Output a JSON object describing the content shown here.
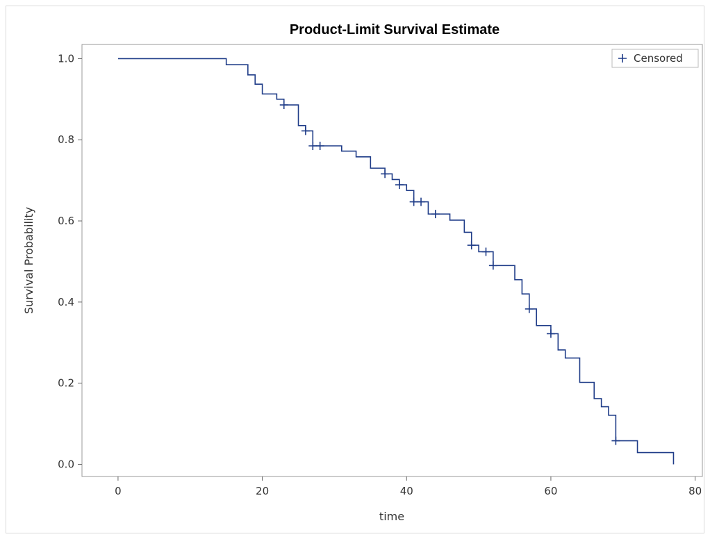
{
  "chart_data": {
    "type": "line",
    "title": "Product-Limit Survival Estimate",
    "xlabel": "time",
    "ylabel": "Survival Probability",
    "xlim": [
      -5,
      81
    ],
    "ylim": [
      -0.03,
      1.035
    ],
    "x_ticks": [
      0,
      20,
      40,
      60,
      80
    ],
    "y_ticks": [
      0.0,
      0.2,
      0.4,
      0.6,
      0.8,
      1.0
    ],
    "y_tick_labels": [
      "0.0",
      "0.2",
      "0.4",
      "0.6",
      "0.8",
      "1.0"
    ],
    "grid": false,
    "legend": {
      "position": "top-right",
      "entries": [
        "Censored"
      ]
    },
    "series": [
      {
        "color": "#1f3c88",
        "step_points": [
          [
            0,
            1.0
          ],
          [
            15,
            0.985
          ],
          [
            18,
            0.96
          ],
          [
            19,
            0.937
          ],
          [
            20,
            0.913
          ],
          [
            22,
            0.9
          ],
          [
            23,
            0.886
          ],
          [
            25,
            0.835
          ],
          [
            26,
            0.822
          ],
          [
            27,
            0.785
          ],
          [
            31,
            0.772
          ],
          [
            33,
            0.758
          ],
          [
            35,
            0.73
          ],
          [
            37,
            0.716
          ],
          [
            38,
            0.702
          ],
          [
            39,
            0.689
          ],
          [
            40,
            0.675
          ],
          [
            41,
            0.647
          ],
          [
            43,
            0.617
          ],
          [
            46,
            0.602
          ],
          [
            48,
            0.572
          ],
          [
            49,
            0.54
          ],
          [
            50,
            0.524
          ],
          [
            52,
            0.49
          ],
          [
            55,
            0.455
          ],
          [
            56,
            0.42
          ],
          [
            57,
            0.383
          ],
          [
            58,
            0.342
          ],
          [
            60,
            0.322
          ],
          [
            61,
            0.282
          ],
          [
            62,
            0.262
          ],
          [
            64,
            0.202
          ],
          [
            66,
            0.162
          ],
          [
            67,
            0.142
          ],
          [
            68,
            0.121
          ],
          [
            69,
            0.058
          ],
          [
            72,
            0.029
          ],
          [
            77,
            0.0
          ]
        ],
        "censored": [
          [
            23,
            0.886
          ],
          [
            26,
            0.822
          ],
          [
            27,
            0.785
          ],
          [
            28,
            0.785
          ],
          [
            37,
            0.716
          ],
          [
            39,
            0.689
          ],
          [
            41,
            0.647
          ],
          [
            42,
            0.647
          ],
          [
            44,
            0.617
          ],
          [
            49,
            0.54
          ],
          [
            51,
            0.524
          ],
          [
            52,
            0.49
          ],
          [
            57,
            0.383
          ],
          [
            60,
            0.322
          ],
          [
            69,
            0.058
          ]
        ]
      }
    ]
  }
}
